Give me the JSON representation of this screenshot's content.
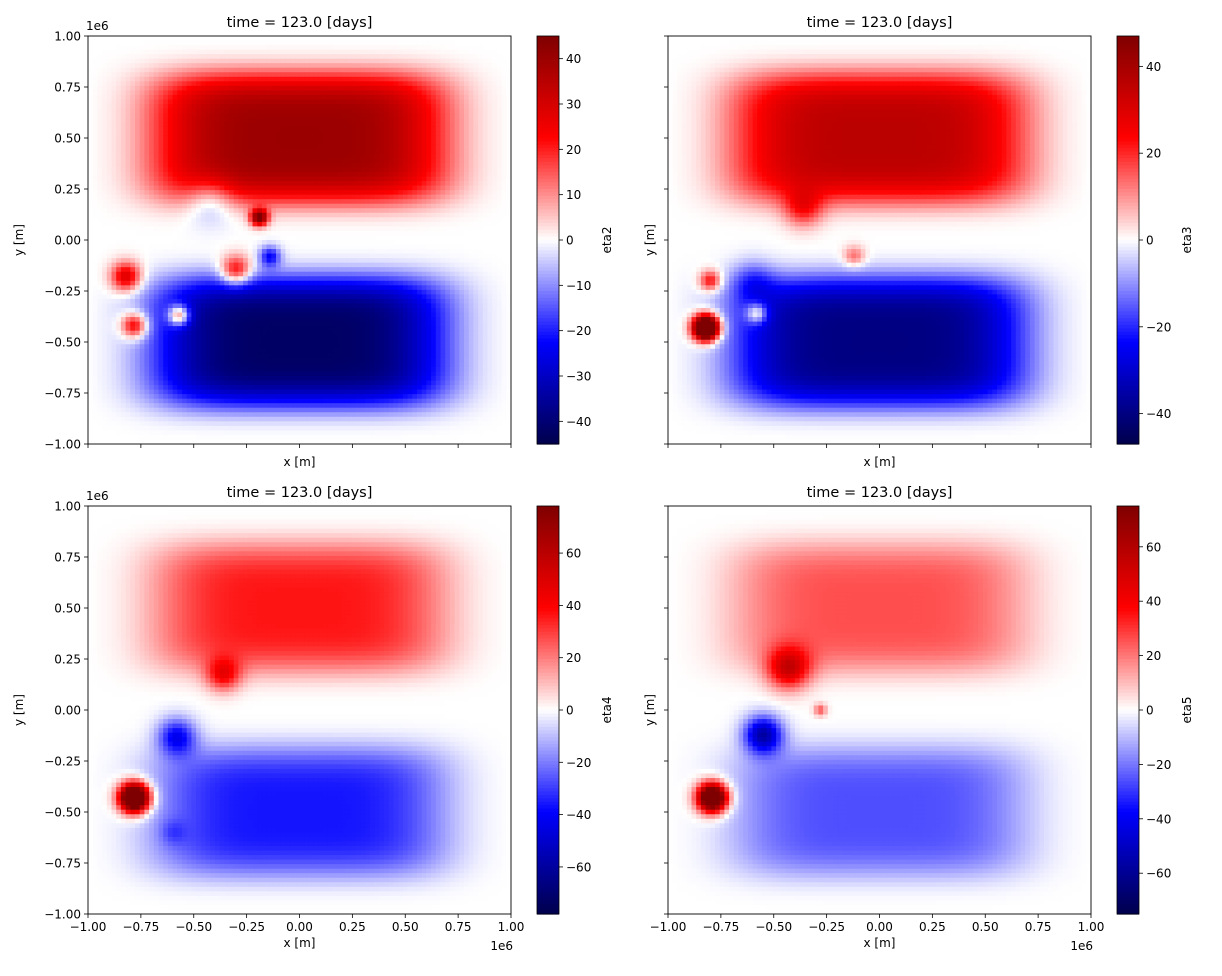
{
  "chart_data": [
    {
      "type": "heatmap",
      "title": "time = 123.0 [days]",
      "xlabel": "x [m]",
      "ylabel": "y [m]",
      "x_offset_text": "",
      "y_offset_text": "1e6",
      "xlim": [
        -1.0,
        1.0
      ],
      "ylim": [
        -1.0,
        1.0
      ],
      "x_ticks": [
        -1.0,
        -0.75,
        -0.5,
        -0.25,
        0.0,
        0.25,
        0.5,
        0.75,
        1.0
      ],
      "x_tick_labels": [],
      "y_ticks": [
        -1.0,
        -0.75,
        -0.5,
        -0.25,
        0.0,
        0.25,
        0.5,
        0.75,
        1.0
      ],
      "y_tick_labels": [
        "−1.00",
        "−0.75",
        "−0.50",
        "−0.25",
        "0.00",
        "0.25",
        "0.50",
        "0.75",
        "1.00"
      ],
      "colormap": "seismic",
      "colorbar": {
        "label": "eta2",
        "vmin": -45,
        "vmax": 45,
        "ticks": [
          -40,
          -30,
          -20,
          -10,
          0,
          10,
          20,
          30,
          40
        ],
        "tick_labels": [
          "−40",
          "−30",
          "−20",
          "−10",
          "0",
          "10",
          "20",
          "30",
          "40"
        ]
      },
      "features": [
        {
          "kind": "gyre",
          "sign": 1,
          "x": 0.0,
          "y": 0.5,
          "sx": 0.7,
          "sy": 0.32,
          "amp": 40
        },
        {
          "kind": "gyre",
          "sign": -1,
          "x": 0.0,
          "y": -0.5,
          "sx": 0.7,
          "sy": 0.32,
          "amp": 42
        },
        {
          "kind": "eddy",
          "x": -0.82,
          "y": -0.18,
          "r": 0.07,
          "amp": 30
        },
        {
          "kind": "eddy",
          "x": -0.78,
          "y": -0.42,
          "r": 0.06,
          "amp": 30
        },
        {
          "kind": "eddy",
          "x": -0.57,
          "y": -0.37,
          "r": 0.05,
          "amp": 34
        },
        {
          "kind": "eddy",
          "x": -0.19,
          "y": 0.11,
          "r": 0.04,
          "amp": 48
        },
        {
          "kind": "eddy",
          "x": -0.14,
          "y": -0.08,
          "r": 0.05,
          "amp": -22
        },
        {
          "kind": "eddy",
          "x": -0.42,
          "y": 0.2,
          "r": 0.11,
          "amp": -12
        },
        {
          "kind": "eddy",
          "x": -0.3,
          "y": -0.15,
          "r": 0.07,
          "amp": 28
        }
      ]
    },
    {
      "type": "heatmap",
      "title": "time = 123.0 [days]",
      "xlabel": "x [m]",
      "ylabel": "y [m]",
      "x_offset_text": "",
      "y_offset_text": "",
      "xlim": [
        -1.0,
        1.0
      ],
      "ylim": [
        -1.0,
        1.0
      ],
      "x_ticks": [
        -1.0,
        -0.75,
        -0.5,
        -0.25,
        0.0,
        0.25,
        0.5,
        0.75,
        1.0
      ],
      "x_tick_labels": [],
      "y_ticks": [
        -1.0,
        -0.75,
        -0.5,
        -0.25,
        0.0,
        0.25,
        0.5,
        0.75,
        1.0
      ],
      "y_tick_labels": [],
      "colormap": "seismic",
      "colorbar": {
        "label": "eta3",
        "vmin": -47,
        "vmax": 47,
        "ticks": [
          -40,
          -20,
          0,
          20,
          40
        ],
        "tick_labels": [
          "−40",
          "−20",
          "0",
          "20",
          "40"
        ]
      },
      "features": [
        {
          "kind": "gyre",
          "sign": 1,
          "x": 0.0,
          "y": 0.5,
          "sx": 0.7,
          "sy": 0.32,
          "amp": 36
        },
        {
          "kind": "gyre",
          "sign": -1,
          "x": 0.0,
          "y": -0.5,
          "sx": 0.7,
          "sy": 0.32,
          "amp": 40
        },
        {
          "kind": "eddy",
          "x": -0.82,
          "y": -0.43,
          "r": 0.06,
          "amp": 95
        },
        {
          "kind": "eddy",
          "x": -0.8,
          "y": -0.2,
          "r": 0.05,
          "amp": 25
        },
        {
          "kind": "eddy",
          "x": -0.58,
          "y": -0.36,
          "r": 0.05,
          "amp": 24
        },
        {
          "kind": "eddy",
          "x": -0.36,
          "y": 0.15,
          "r": 0.09,
          "amp": 18
        },
        {
          "kind": "eddy",
          "x": -0.12,
          "y": -0.08,
          "r": 0.05,
          "amp": 14
        },
        {
          "kind": "eddy",
          "x": -0.6,
          "y": -0.2,
          "r": 0.1,
          "amp": -12
        }
      ]
    },
    {
      "type": "heatmap",
      "title": "time = 123.0 [days]",
      "xlabel": "x [m]",
      "ylabel": "y [m]",
      "x_offset_text": "1e6",
      "y_offset_text": "1e6",
      "xlim": [
        -1.0,
        1.0
      ],
      "ylim": [
        -1.0,
        1.0
      ],
      "x_ticks": [
        -1.0,
        -0.75,
        -0.5,
        -0.25,
        0.0,
        0.25,
        0.5,
        0.75,
        1.0
      ],
      "x_tick_labels": [
        "−1.00",
        "−0.75",
        "−0.50",
        "−0.25",
        "0.00",
        "0.25",
        "0.50",
        "0.75",
        "1.00"
      ],
      "y_ticks": [
        -1.0,
        -0.75,
        -0.5,
        -0.25,
        0.0,
        0.25,
        0.5,
        0.75,
        1.0
      ],
      "y_tick_labels": [
        "−1.00",
        "−0.75",
        "−0.50",
        "−0.25",
        "0.00",
        "0.25",
        "0.50",
        "0.75",
        "1.00"
      ],
      "colormap": "seismic",
      "colorbar": {
        "label": "eta4",
        "vmin": -78,
        "vmax": 78,
        "ticks": [
          -60,
          -40,
          -20,
          0,
          20,
          40,
          60
        ],
        "tick_labels": [
          "−60",
          "−40",
          "−20",
          "0",
          "20",
          "40",
          "60"
        ]
      },
      "features": [
        {
          "kind": "gyre",
          "sign": 1,
          "x": 0.0,
          "y": 0.5,
          "sx": 0.7,
          "sy": 0.32,
          "amp": 36
        },
        {
          "kind": "gyre",
          "sign": -1,
          "x": 0.0,
          "y": -0.5,
          "sx": 0.7,
          "sy": 0.32,
          "amp": 36
        },
        {
          "kind": "eddy",
          "x": -0.78,
          "y": -0.43,
          "r": 0.07,
          "amp": 140
        },
        {
          "kind": "eddy",
          "x": -0.36,
          "y": 0.17,
          "r": 0.08,
          "amp": 35
        },
        {
          "kind": "eddy",
          "x": -0.58,
          "y": -0.13,
          "r": 0.09,
          "amp": -40
        },
        {
          "kind": "eddy",
          "x": -0.6,
          "y": -0.6,
          "r": 0.06,
          "amp": -10
        }
      ]
    },
    {
      "type": "heatmap",
      "title": "time = 123.0 [days]",
      "xlabel": "x [m]",
      "ylabel": "y [m]",
      "x_offset_text": "1e6",
      "y_offset_text": "",
      "xlim": [
        -1.0,
        1.0
      ],
      "ylim": [
        -1.0,
        1.0
      ],
      "x_ticks": [
        -1.0,
        -0.75,
        -0.5,
        -0.25,
        0.0,
        0.25,
        0.5,
        0.75,
        1.0
      ],
      "x_tick_labels": [
        "−1.00",
        "−0.75",
        "−0.50",
        "−0.25",
        "0.00",
        "0.25",
        "0.50",
        "0.75",
        "1.00"
      ],
      "y_ticks": [
        -1.0,
        -0.75,
        -0.5,
        -0.25,
        0.0,
        0.25,
        0.5,
        0.75,
        1.0
      ],
      "y_tick_labels": [],
      "colormap": "seismic",
      "colorbar": {
        "label": "eta5",
        "vmin": -75,
        "vmax": 75,
        "ticks": [
          -60,
          -40,
          -20,
          0,
          20,
          40,
          60
        ],
        "tick_labels": [
          "−60",
          "−40",
          "−20",
          "0",
          "20",
          "40",
          "60"
        ]
      },
      "features": [
        {
          "kind": "gyre",
          "sign": 1,
          "x": 0.0,
          "y": 0.5,
          "sx": 0.7,
          "sy": 0.32,
          "amp": 26
        },
        {
          "kind": "gyre",
          "sign": -1,
          "x": 0.0,
          "y": -0.5,
          "sx": 0.7,
          "sy": 0.32,
          "amp": 26
        },
        {
          "kind": "eddy",
          "x": -0.79,
          "y": -0.43,
          "r": 0.07,
          "amp": 120
        },
        {
          "kind": "eddy",
          "x": -0.43,
          "y": 0.2,
          "r": 0.1,
          "amp": 45
        },
        {
          "kind": "eddy",
          "x": -0.55,
          "y": -0.12,
          "r": 0.09,
          "amp": -55
        },
        {
          "kind": "eddy",
          "x": -0.28,
          "y": 0.0,
          "r": 0.03,
          "amp": 25
        }
      ]
    }
  ]
}
